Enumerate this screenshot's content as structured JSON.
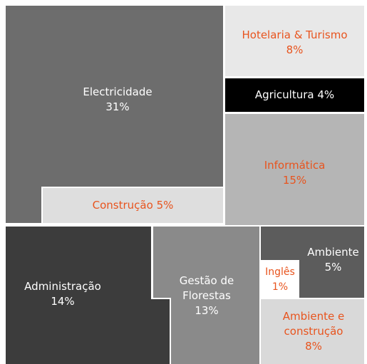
{
  "chart_data": {
    "type": "treemap",
    "categories": [
      "Electricidade",
      "Hotelaria & Turismo",
      "Agricultura",
      "Informática",
      "Construção",
      "Administração",
      "Gestão de Florestas",
      "Ambiente",
      "Inglês",
      "Ambiente e construção"
    ],
    "values": [
      31,
      8,
      4,
      15,
      5,
      14,
      13,
      5,
      1,
      8
    ],
    "value_labels": [
      "31%",
      "8%",
      "4%",
      "15%",
      "5%",
      "14%",
      "13%",
      "5%",
      "1%",
      "8%"
    ],
    "colors": [
      "#6d6d6d",
      "#e8e8e8",
      "#000000",
      "#b5b5b5",
      "#dedede",
      "#3c3c3c",
      "#8a8a8a",
      "#5c5c5c",
      "#ffffff",
      "#d9d9d9"
    ]
  }
}
